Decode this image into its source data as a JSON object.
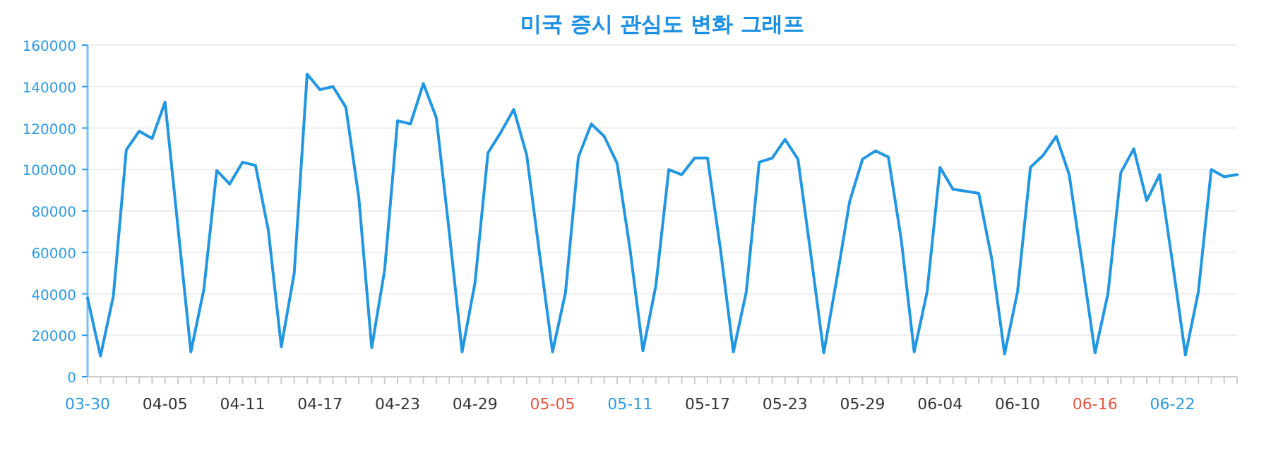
{
  "chart_data": {
    "type": "line",
    "title": "미국 증시 관심도 변화 그래프",
    "x": [
      "--03-30",
      "--03-31",
      "--04-01",
      "--04-02",
      "--04-03",
      "--04-04",
      "--04-05",
      "--04-06",
      "--04-07",
      "--04-08",
      "--04-09",
      "--04-10",
      "--04-11",
      "--04-12",
      "--04-13",
      "--04-14",
      "--04-15",
      "--04-16",
      "--04-17",
      "--04-18",
      "--04-19",
      "--04-20",
      "--04-21",
      "--04-22",
      "--04-23",
      "--04-24",
      "--04-25",
      "--04-26",
      "--04-27",
      "--04-28",
      "--04-29",
      "--04-30",
      "--05-01",
      "--05-02",
      "--05-03",
      "--05-04",
      "--05-05",
      "--05-06",
      "--05-07",
      "--05-08",
      "--05-09",
      "--05-10",
      "--05-11",
      "--05-12",
      "--05-13",
      "--05-14",
      "--05-15",
      "--05-16",
      "--05-17",
      "--05-18",
      "--05-19",
      "--05-20",
      "--05-21",
      "--05-22",
      "--05-23",
      "--05-24",
      "--05-25",
      "--05-26",
      "--05-27",
      "--05-28",
      "--05-29",
      "--05-30",
      "--05-31",
      "--06-01",
      "--06-02",
      "--06-03",
      "--06-04",
      "--06-05",
      "--06-06",
      "--06-07",
      "--06-08",
      "--06-09",
      "--06-10",
      "--06-11",
      "--06-12",
      "--06-13",
      "--06-14",
      "--06-15",
      "--06-16",
      "--06-17",
      "--06-18",
      "--06-19",
      "--06-20",
      "--06-21",
      "--06-22",
      "--06-23",
      "--06-24",
      "--06-25",
      "--06-26",
      "--06-27"
    ],
    "series": [
      {
        "color": "#2196e3",
        "values": [
          38000,
          10000,
          39000,
          109500,
          118500,
          115000,
          132500,
          72000,
          12000,
          42000,
          99500,
          93000,
          103500,
          102000,
          70500,
          14500,
          50000,
          146000,
          138500,
          140000,
          130000,
          86500,
          14000,
          51500,
          123500,
          122000,
          141500,
          125000,
          70000,
          12000,
          45500,
          108000,
          118000,
          129000,
          107000,
          59000,
          12000,
          40500,
          106000,
          122000,
          116000,
          103000,
          61500,
          12500,
          44000,
          100000,
          97500,
          105500,
          105500,
          61500,
          12000,
          41000,
          103500,
          105500,
          114500,
          105000,
          59000,
          11500,
          47000,
          84500,
          105000,
          109000,
          106000,
          66000,
          12000,
          41000,
          101000,
          90500,
          89500,
          88500,
          57000,
          11000,
          41000,
          101000,
          107000,
          116000,
          97500,
          55000,
          11500,
          40000,
          98500,
          110000,
          85000,
          97500,
          55000,
          10500,
          41000,
          100000,
          96500,
          97500
        ]
      }
    ],
    "xlim": [
      "--03-30",
      "--06-27"
    ],
    "xticks": [
      {
        "value": "--03-30",
        "label": "03-30"
      },
      {
        "value": "--04-05",
        "label": "04-05"
      },
      {
        "value": "--04-11",
        "label": "04-11"
      },
      {
        "value": "--04-17",
        "label": "04-17"
      },
      {
        "value": "--04-23",
        "label": "04-23"
      },
      {
        "value": "--04-29",
        "label": "04-29"
      },
      {
        "value": "--05-05",
        "label": "05-05"
      },
      {
        "value": "--05-11",
        "label": "05-11"
      },
      {
        "value": "--05-17",
        "label": "05-17"
      },
      {
        "value": "--05-23",
        "label": "05-23"
      },
      {
        "value": "--05-29",
        "label": "05-29"
      },
      {
        "value": "--06-04",
        "label": "06-04"
      },
      {
        "value": "--06-10",
        "label": "06-10"
      },
      {
        "value": "--06-16",
        "label": "06-16"
      },
      {
        "value": "--06-22",
        "label": "06-22"
      }
    ],
    "ylim": [
      0,
      160000
    ],
    "yticks": [
      0,
      20000,
      40000,
      60000,
      80000,
      100000,
      120000,
      140000,
      160000
    ],
    "grid": "y",
    "marker": "none",
    "line_style": "solid"
  }
}
